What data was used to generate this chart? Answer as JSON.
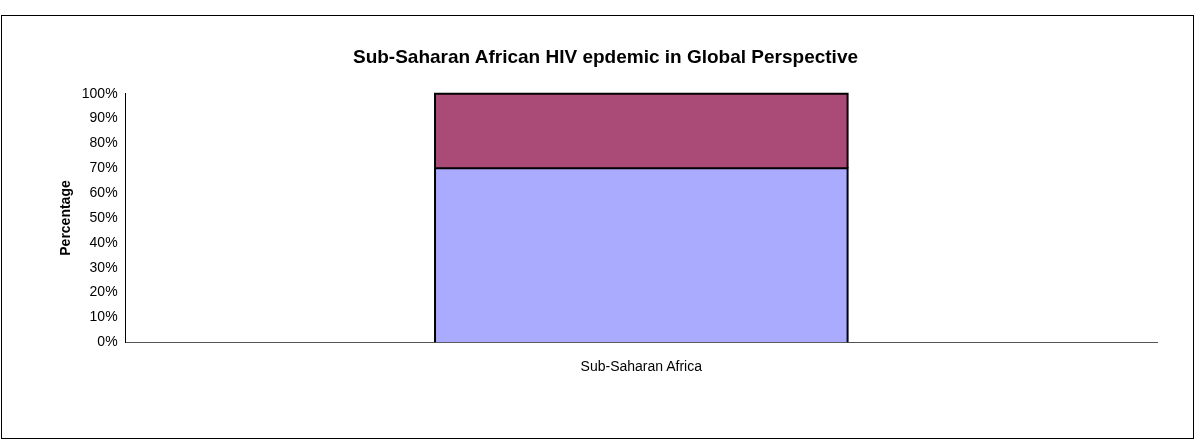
{
  "chart_data": {
    "type": "bar",
    "stacked": true,
    "title": "Sub-Saharan African HIV epdemic in Global Perspective",
    "ylabel": "Percentage",
    "categories": [
      "Sub-Saharan Africa"
    ],
    "series": [
      {
        "color": "#aaaaff",
        "values": [
          70
        ]
      },
      {
        "color": "#a94a77",
        "values": [
          30
        ]
      }
    ],
    "ylim": [
      0,
      100
    ],
    "yticks": [
      {
        "value": 0,
        "label": "0%"
      },
      {
        "value": 10,
        "label": "10%"
      },
      {
        "value": 20,
        "label": "20%"
      },
      {
        "value": 30,
        "label": "30%"
      },
      {
        "value": 40,
        "label": "40%"
      },
      {
        "value": 50,
        "label": "50%"
      },
      {
        "value": 60,
        "label": "60%"
      },
      {
        "value": 70,
        "label": "70%"
      },
      {
        "value": 80,
        "label": "80%"
      },
      {
        "value": 90,
        "label": "90%"
      },
      {
        "value": 100,
        "label": "100%"
      }
    ],
    "grid": false,
    "legend": false
  }
}
